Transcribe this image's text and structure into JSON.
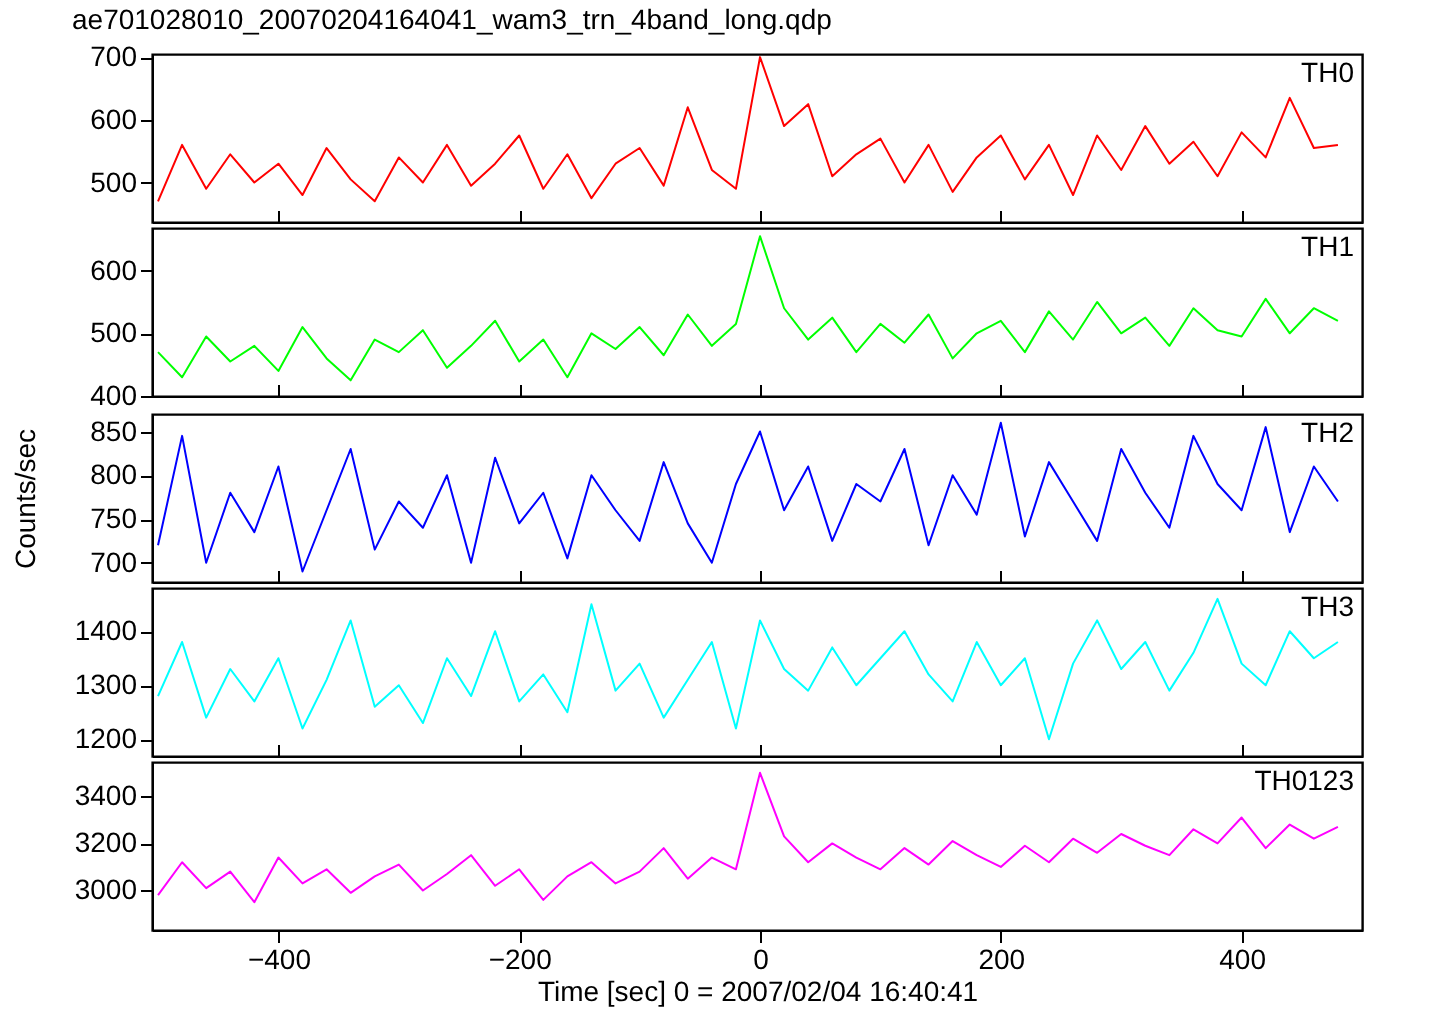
{
  "chart_data": [
    {
      "type": "line",
      "title": "ae701028010_20070204164041_wam3_trn_4band_long.qdp",
      "xlim": [
        -505,
        500
      ],
      "xticks": [
        -400,
        -200,
        0,
        200,
        400
      ],
      "ylim": [
        437,
        705
      ],
      "yticks": [
        500,
        600,
        700
      ],
      "tick_labels": "y",
      "x": [
        -500,
        -480,
        -460,
        -440,
        -420,
        -400,
        -380,
        -360,
        -340,
        -320,
        -300,
        -280,
        -260,
        -240,
        -220,
        -200,
        -180,
        -160,
        -140,
        -120,
        -100,
        -80,
        -60,
        -40,
        -20,
        0,
        20,
        40,
        60,
        80,
        100,
        120,
        140,
        160,
        180,
        200,
        220,
        240,
        260,
        280,
        300,
        320,
        340,
        360,
        380,
        400,
        420,
        440,
        460,
        480
      ],
      "series": [
        {
          "name": "TH0",
          "color": "#ff0000",
          "values": [
            470,
            560,
            490,
            545,
            500,
            530,
            480,
            555,
            505,
            470,
            540,
            500,
            560,
            495,
            530,
            575,
            490,
            545,
            475,
            530,
            555,
            495,
            620,
            520,
            490,
            700,
            590,
            625,
            510,
            545,
            570,
            500,
            560,
            485,
            540,
            575,
            505,
            560,
            480,
            575,
            520,
            590,
            530,
            565,
            510,
            580,
            540,
            635,
            555,
            560
          ]
        }
      ]
    },
    {
      "type": "line",
      "xlim": [
        -505,
        500
      ],
      "xticks": [
        -400,
        -200,
        0,
        200,
        400
      ],
      "ylim": [
        400,
        668
      ],
      "yticks": [
        400,
        500,
        600
      ],
      "tick_labels": "y",
      "x": [
        -500,
        -480,
        -460,
        -440,
        -420,
        -400,
        -380,
        -360,
        -340,
        -320,
        -300,
        -280,
        -260,
        -240,
        -220,
        -200,
        -180,
        -160,
        -140,
        -120,
        -100,
        -80,
        -60,
        -40,
        -20,
        0,
        20,
        40,
        60,
        80,
        100,
        120,
        140,
        160,
        180,
        200,
        220,
        240,
        260,
        280,
        300,
        320,
        340,
        360,
        380,
        400,
        420,
        440,
        460,
        480
      ],
      "series": [
        {
          "name": "TH1",
          "color": "#00ff00",
          "values": [
            470,
            430,
            495,
            455,
            480,
            440,
            510,
            460,
            425,
            490,
            470,
            505,
            445,
            480,
            520,
            455,
            490,
            430,
            500,
            475,
            510,
            465,
            530,
            480,
            515,
            655,
            540,
            490,
            525,
            470,
            515,
            485,
            530,
            460,
            500,
            520,
            470,
            535,
            490,
            550,
            500,
            525,
            480,
            540,
            505,
            495,
            555,
            500,
            540,
            520
          ]
        }
      ]
    },
    {
      "type": "line",
      "ylabel": "Counts/sec",
      "xlim": [
        -505,
        500
      ],
      "xticks": [
        -400,
        -200,
        0,
        200,
        400
      ],
      "ylim": [
        678,
        870
      ],
      "yticks": [
        700,
        750,
        800,
        850
      ],
      "tick_labels": "y",
      "x": [
        -500,
        -480,
        -460,
        -440,
        -420,
        -400,
        -380,
        -360,
        -340,
        -320,
        -300,
        -280,
        -260,
        -240,
        -220,
        -200,
        -180,
        -160,
        -140,
        -120,
        -100,
        -80,
        -60,
        -40,
        -20,
        0,
        20,
        40,
        60,
        80,
        100,
        120,
        140,
        160,
        180,
        200,
        220,
        240,
        260,
        280,
        300,
        320,
        340,
        360,
        380,
        400,
        420,
        440,
        460,
        480
      ],
      "series": [
        {
          "name": "TH2",
          "color": "#0000ff",
          "values": [
            720,
            845,
            700,
            780,
            735,
            810,
            690,
            760,
            830,
            715,
            770,
            740,
            800,
            700,
            820,
            745,
            780,
            705,
            800,
            760,
            725,
            815,
            745,
            700,
            790,
            850,
            760,
            810,
            725,
            790,
            770,
            830,
            720,
            800,
            755,
            860,
            730,
            815,
            770,
            725,
            830,
            780,
            740,
            845,
            790,
            760,
            855,
            735,
            810,
            770
          ]
        }
      ]
    },
    {
      "type": "line",
      "xlim": [
        -505,
        500
      ],
      "xticks": [
        -400,
        -200,
        0,
        200,
        400
      ],
      "ylim": [
        1169,
        1480
      ],
      "yticks": [
        1200,
        1300,
        1400
      ],
      "tick_labels": "y",
      "x": [
        -500,
        -480,
        -460,
        -440,
        -420,
        -400,
        -380,
        -360,
        -340,
        -320,
        -300,
        -280,
        -260,
        -240,
        -220,
        -200,
        -180,
        -160,
        -140,
        -120,
        -100,
        -80,
        -60,
        -40,
        -20,
        0,
        20,
        40,
        60,
        80,
        100,
        120,
        140,
        160,
        180,
        200,
        220,
        240,
        260,
        280,
        300,
        320,
        340,
        360,
        380,
        400,
        420,
        440,
        460,
        480
      ],
      "series": [
        {
          "name": "TH3",
          "color": "#00ffff",
          "values": [
            1280,
            1380,
            1240,
            1330,
            1270,
            1350,
            1220,
            1310,
            1420,
            1260,
            1300,
            1230,
            1350,
            1280,
            1400,
            1270,
            1320,
            1250,
            1450,
            1290,
            1340,
            1240,
            1310,
            1380,
            1220,
            1420,
            1330,
            1290,
            1370,
            1300,
            1350,
            1400,
            1320,
            1270,
            1380,
            1300,
            1350,
            1200,
            1340,
            1420,
            1330,
            1380,
            1290,
            1360,
            1460,
            1340,
            1300,
            1400,
            1350,
            1380
          ]
        }
      ]
    },
    {
      "type": "line",
      "xlabel": "Time [sec] 0 = 2007/02/04 16:40:41",
      "xlim": [
        -505,
        500
      ],
      "xticks": [
        -400,
        -200,
        0,
        200,
        400
      ],
      "ylim": [
        2832,
        3546
      ],
      "yticks": [
        3000,
        3200,
        3400
      ],
      "x": [
        -500,
        -480,
        -460,
        -440,
        -420,
        -400,
        -380,
        -360,
        -340,
        -320,
        -300,
        -280,
        -260,
        -240,
        -220,
        -200,
        -180,
        -160,
        -140,
        -120,
        -100,
        -80,
        -60,
        -40,
        -20,
        0,
        20,
        40,
        60,
        80,
        100,
        120,
        140,
        160,
        180,
        200,
        220,
        240,
        260,
        280,
        300,
        320,
        340,
        360,
        380,
        400,
        420,
        440,
        460,
        480
      ],
      "series": [
        {
          "name": "TH0123",
          "color": "#ff00ff",
          "values": [
            2980,
            3120,
            3010,
            3080,
            2950,
            3140,
            3030,
            3090,
            2990,
            3060,
            3110,
            3000,
            3070,
            3150,
            3020,
            3090,
            2960,
            3060,
            3120,
            3030,
            3080,
            3180,
            3050,
            3140,
            3090,
            3500,
            3230,
            3120,
            3200,
            3140,
            3090,
            3180,
            3110,
            3210,
            3150,
            3100,
            3190,
            3120,
            3220,
            3160,
            3240,
            3190,
            3150,
            3260,
            3200,
            3310,
            3180,
            3280,
            3220,
            3270
          ]
        }
      ]
    }
  ]
}
